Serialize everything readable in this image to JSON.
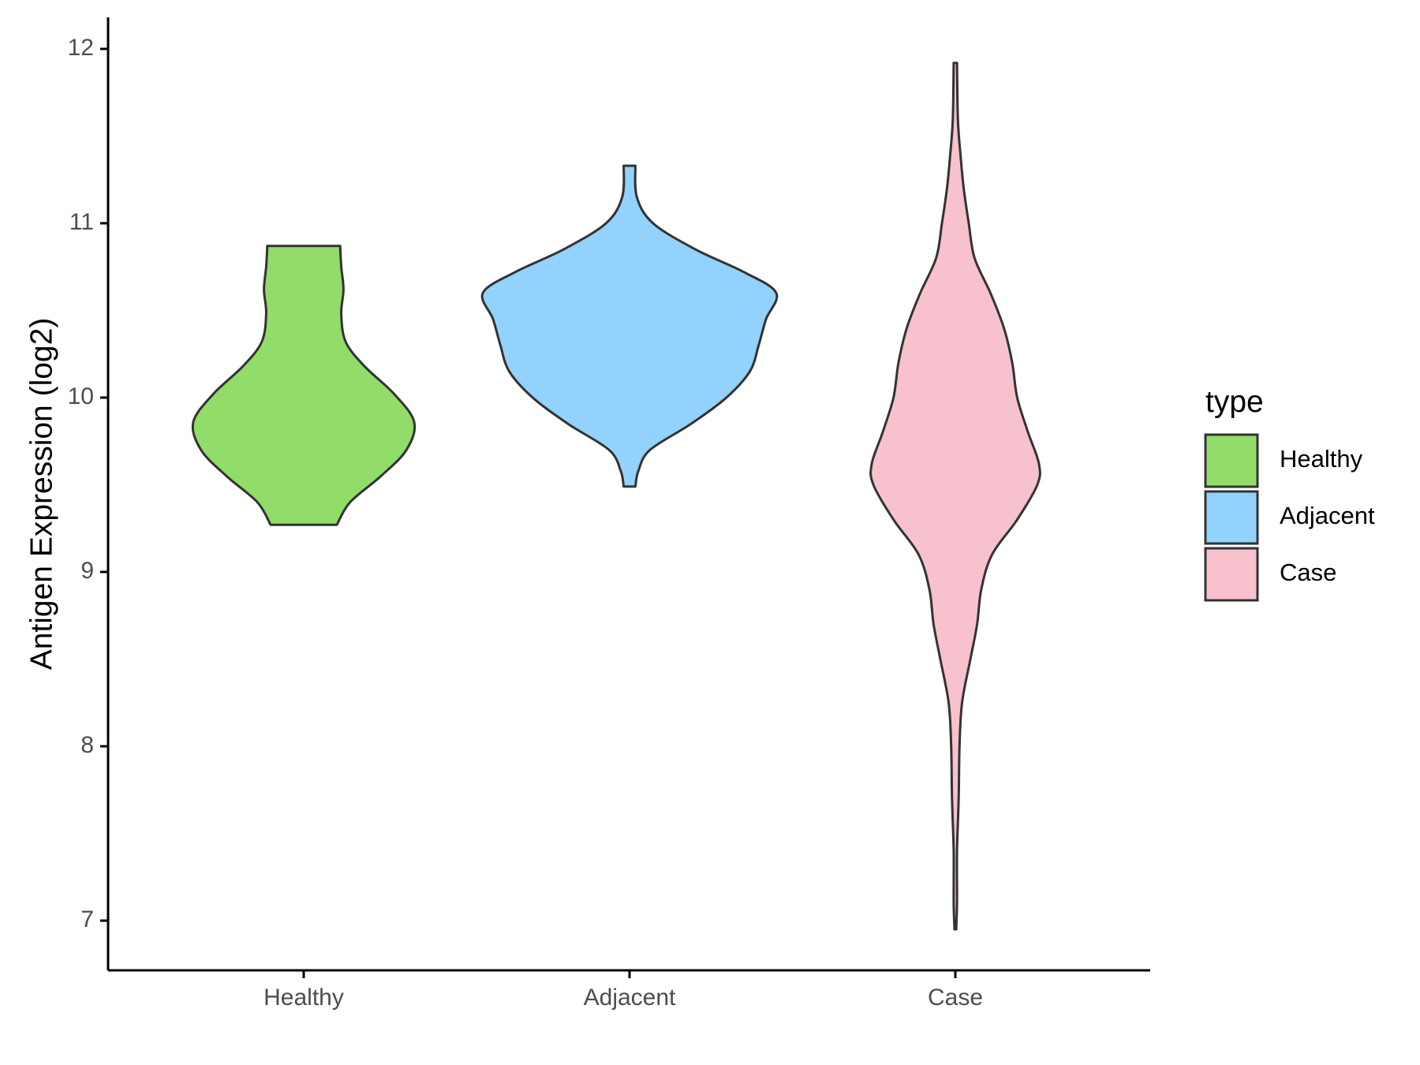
{
  "chart_data": {
    "type": "violin",
    "title": "",
    "xlabel": "",
    "ylabel": "Antigen Expression (log2)",
    "ylim": [
      6.7,
      12.2
    ],
    "yticks": [
      7,
      8,
      9,
      10,
      11,
      12
    ],
    "categories": [
      "Healthy",
      "Adjacent",
      "Case"
    ],
    "grid": false,
    "legend": {
      "title": "type",
      "placement": "right",
      "entries": [
        "Healthy",
        "Adjacent",
        "Case"
      ]
    },
    "series": [
      {
        "category": "Healthy",
        "color": "#92dc6a",
        "min": 9.27,
        "max": 10.87,
        "density_profile": [
          [
            9.27,
            0.3
          ],
          [
            9.4,
            0.42
          ],
          [
            9.55,
            0.7
          ],
          [
            9.7,
            0.93
          ],
          [
            9.86,
            1.0
          ],
          [
            10.02,
            0.82
          ],
          [
            10.18,
            0.55
          ],
          [
            10.32,
            0.38
          ],
          [
            10.48,
            0.34
          ],
          [
            10.62,
            0.36
          ],
          [
            10.75,
            0.34
          ],
          [
            10.87,
            0.33
          ]
        ]
      },
      {
        "category": "Adjacent",
        "color": "#92d2fc",
        "min": 9.49,
        "max": 11.33,
        "density_profile": [
          [
            9.49,
            0.04
          ],
          [
            9.58,
            0.06
          ],
          [
            9.7,
            0.14
          ],
          [
            9.85,
            0.42
          ],
          [
            10.0,
            0.66
          ],
          [
            10.15,
            0.82
          ],
          [
            10.3,
            0.88
          ],
          [
            10.45,
            0.93
          ],
          [
            10.6,
            1.0
          ],
          [
            10.72,
            0.78
          ],
          [
            10.85,
            0.45
          ],
          [
            11.0,
            0.16
          ],
          [
            11.15,
            0.05
          ],
          [
            11.33,
            0.04
          ]
        ]
      },
      {
        "category": "Case",
        "color": "#f7c1cd",
        "min": 6.95,
        "max": 11.92,
        "density_profile": [
          [
            6.95,
            0.01
          ],
          [
            7.1,
            0.02
          ],
          [
            7.4,
            0.02
          ],
          [
            7.7,
            0.04
          ],
          [
            8.0,
            0.05
          ],
          [
            8.25,
            0.08
          ],
          [
            8.5,
            0.18
          ],
          [
            8.7,
            0.26
          ],
          [
            8.9,
            0.31
          ],
          [
            9.1,
            0.44
          ],
          [
            9.3,
            0.74
          ],
          [
            9.5,
            0.98
          ],
          [
            9.62,
            1.0
          ],
          [
            9.8,
            0.87
          ],
          [
            10.0,
            0.74
          ],
          [
            10.2,
            0.68
          ],
          [
            10.4,
            0.58
          ],
          [
            10.6,
            0.42
          ],
          [
            10.8,
            0.23
          ],
          [
            11.0,
            0.16
          ],
          [
            11.2,
            0.1
          ],
          [
            11.4,
            0.06
          ],
          [
            11.6,
            0.03
          ],
          [
            11.92,
            0.02
          ]
        ]
      }
    ]
  }
}
